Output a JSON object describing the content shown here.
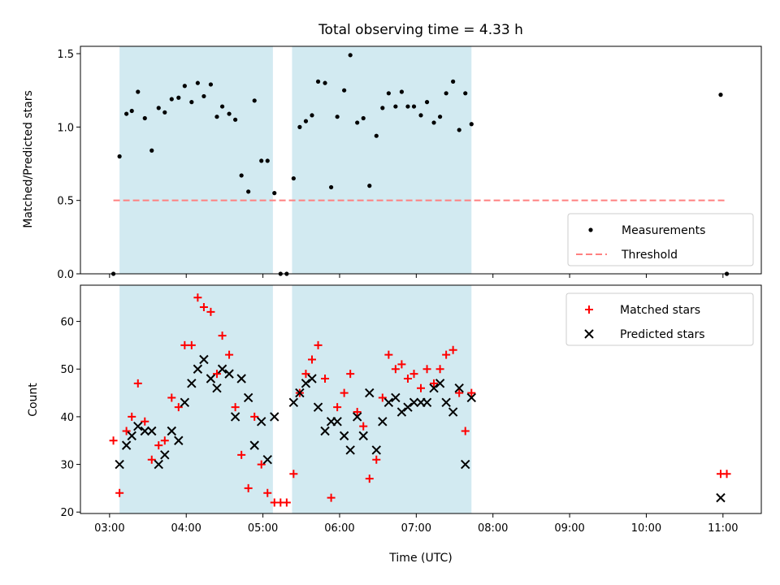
{
  "chart_data": [
    {
      "type": "scatter",
      "title": "Total observing time = 4.33 h",
      "ylabel": "Matched/Predicted stars",
      "xlabel": "",
      "xlim_hours": [
        2.62,
        11.5
      ],
      "ylim": [
        0,
        1.55
      ],
      "yticks": [
        0.0,
        0.5,
        1.0,
        1.5
      ],
      "ytick_labels": [
        "0.0",
        "0.5",
        "1.0",
        "1.5"
      ],
      "shaded_intervals_hours": [
        [
          3.13,
          5.13
        ],
        [
          5.38,
          7.72
        ]
      ],
      "shade_color": "#add8e6",
      "legend": {
        "placement": "lower right",
        "entries": [
          "Measurements",
          "Threshold"
        ]
      },
      "series": [
        {
          "name": "Measurements",
          "marker": "dot",
          "color": "#000000",
          "points": [
            [
              3.05,
              0.0
            ],
            [
              3.13,
              0.8
            ],
            [
              3.22,
              1.09
            ],
            [
              3.29,
              1.11
            ],
            [
              3.37,
              1.24
            ],
            [
              3.46,
              1.06
            ],
            [
              3.55,
              0.84
            ],
            [
              3.64,
              1.13
            ],
            [
              3.72,
              1.1
            ],
            [
              3.81,
              1.19
            ],
            [
              3.9,
              1.2
            ],
            [
              3.98,
              1.28
            ],
            [
              4.07,
              1.17
            ],
            [
              4.15,
              1.3
            ],
            [
              4.23,
              1.21
            ],
            [
              4.32,
              1.29
            ],
            [
              4.4,
              1.07
            ],
            [
              4.47,
              1.14
            ],
            [
              4.56,
              1.09
            ],
            [
              4.64,
              1.05
            ],
            [
              4.72,
              0.67
            ],
            [
              4.81,
              0.56
            ],
            [
              4.89,
              1.18
            ],
            [
              4.98,
              0.77
            ],
            [
              5.06,
              0.77
            ],
            [
              5.15,
              0.55
            ],
            [
              5.23,
              0.0
            ],
            [
              5.31,
              0.0
            ],
            [
              5.4,
              0.65
            ],
            [
              5.48,
              1.0
            ],
            [
              5.56,
              1.04
            ],
            [
              5.64,
              1.08
            ],
            [
              5.72,
              1.31
            ],
            [
              5.81,
              1.3
            ],
            [
              5.89,
              0.59
            ],
            [
              5.97,
              1.07
            ],
            [
              6.06,
              1.25
            ],
            [
              6.14,
              1.49
            ],
            [
              6.23,
              1.03
            ],
            [
              6.31,
              1.06
            ],
            [
              6.39,
              0.6
            ],
            [
              6.48,
              0.94
            ],
            [
              6.56,
              1.13
            ],
            [
              6.64,
              1.23
            ],
            [
              6.73,
              1.14
            ],
            [
              6.81,
              1.24
            ],
            [
              6.89,
              1.14
            ],
            [
              6.97,
              1.14
            ],
            [
              7.06,
              1.08
            ],
            [
              7.14,
              1.17
            ],
            [
              7.23,
              1.03
            ],
            [
              7.31,
              1.07
            ],
            [
              7.39,
              1.23
            ],
            [
              7.48,
              1.31
            ],
            [
              7.56,
              0.98
            ],
            [
              7.64,
              1.23
            ],
            [
              7.72,
              1.02
            ],
            [
              10.97,
              1.22
            ],
            [
              11.05,
              0.0
            ]
          ]
        },
        {
          "name": "Threshold",
          "style": "dashed",
          "color": "#ff8080",
          "x": [
            3.05,
            11.05
          ],
          "y": [
            0.5,
            0.5
          ]
        }
      ]
    },
    {
      "type": "scatter",
      "title": "",
      "xlabel": "Time (UTC)",
      "ylabel": "Count",
      "xlim_hours": [
        2.62,
        11.5
      ],
      "ylim": [
        19.7,
        67.6
      ],
      "yticks": [
        20,
        30,
        40,
        50,
        60
      ],
      "ytick_labels": [
        "20",
        "30",
        "40",
        "50",
        "60"
      ],
      "xticks_hours": [
        3,
        4,
        5,
        6,
        7,
        8,
        9,
        10,
        11
      ],
      "xtick_labels": [
        "03:00",
        "04:00",
        "05:00",
        "06:00",
        "07:00",
        "08:00",
        "09:00",
        "10:00",
        "11:00"
      ],
      "shaded_intervals_hours": [
        [
          3.13,
          5.13
        ],
        [
          5.38,
          7.72
        ]
      ],
      "shade_color": "#add8e6",
      "legend": {
        "placement": "upper right",
        "entries": [
          "Matched stars",
          "Predicted stars"
        ]
      },
      "series": [
        {
          "name": "Matched stars",
          "marker": "plus",
          "color": "#ff0000",
          "points": [
            [
              3.05,
              35
            ],
            [
              3.13,
              24
            ],
            [
              3.22,
              37
            ],
            [
              3.29,
              40
            ],
            [
              3.37,
              47
            ],
            [
              3.46,
              39
            ],
            [
              3.55,
              31
            ],
            [
              3.64,
              34
            ],
            [
              3.72,
              35
            ],
            [
              3.81,
              44
            ],
            [
              3.9,
              42
            ],
            [
              3.98,
              55
            ],
            [
              4.07,
              55
            ],
            [
              4.15,
              65
            ],
            [
              4.23,
              63
            ],
            [
              4.32,
              62
            ],
            [
              4.4,
              49
            ],
            [
              4.47,
              57
            ],
            [
              4.56,
              53
            ],
            [
              4.64,
              42
            ],
            [
              4.72,
              32
            ],
            [
              4.81,
              25
            ],
            [
              4.89,
              40
            ],
            [
              4.98,
              30
            ],
            [
              5.06,
              24
            ],
            [
              5.15,
              22
            ],
            [
              5.23,
              22
            ],
            [
              5.31,
              22
            ],
            [
              5.4,
              28
            ],
            [
              5.48,
              45
            ],
            [
              5.56,
              49
            ],
            [
              5.64,
              52
            ],
            [
              5.72,
              55
            ],
            [
              5.81,
              48
            ],
            [
              5.89,
              23
            ],
            [
              5.97,
              42
            ],
            [
              6.06,
              45
            ],
            [
              6.14,
              49
            ],
            [
              6.23,
              41
            ],
            [
              6.31,
              38
            ],
            [
              6.39,
              27
            ],
            [
              6.48,
              31
            ],
            [
              6.56,
              44
            ],
            [
              6.64,
              53
            ],
            [
              6.73,
              50
            ],
            [
              6.81,
              51
            ],
            [
              6.89,
              48
            ],
            [
              6.97,
              49
            ],
            [
              7.06,
              46
            ],
            [
              7.14,
              50
            ],
            [
              7.23,
              47
            ],
            [
              7.31,
              50
            ],
            [
              7.39,
              53
            ],
            [
              7.48,
              54
            ],
            [
              7.56,
              45
            ],
            [
              7.64,
              37
            ],
            [
              7.72,
              45
            ],
            [
              10.97,
              28
            ],
            [
              11.05,
              28
            ]
          ]
        },
        {
          "name": "Predicted stars",
          "marker": "x",
          "color": "#000000",
          "points": [
            [
              3.13,
              30
            ],
            [
              3.22,
              34
            ],
            [
              3.29,
              36
            ],
            [
              3.37,
              38
            ],
            [
              3.46,
              37
            ],
            [
              3.55,
              37
            ],
            [
              3.64,
              30
            ],
            [
              3.72,
              32
            ],
            [
              3.81,
              37
            ],
            [
              3.9,
              35
            ],
            [
              3.98,
              43
            ],
            [
              4.07,
              47
            ],
            [
              4.15,
              50
            ],
            [
              4.23,
              52
            ],
            [
              4.32,
              48
            ],
            [
              4.4,
              46
            ],
            [
              4.47,
              50
            ],
            [
              4.56,
              49
            ],
            [
              4.64,
              40
            ],
            [
              4.72,
              48
            ],
            [
              4.81,
              44
            ],
            [
              4.89,
              34
            ],
            [
              4.98,
              39
            ],
            [
              5.06,
              31
            ],
            [
              5.15,
              40
            ],
            [
              5.4,
              43
            ],
            [
              5.48,
              45
            ],
            [
              5.56,
              47
            ],
            [
              5.64,
              48
            ],
            [
              5.72,
              42
            ],
            [
              5.81,
              37
            ],
            [
              5.89,
              39
            ],
            [
              5.97,
              39
            ],
            [
              6.06,
              36
            ],
            [
              6.14,
              33
            ],
            [
              6.23,
              40
            ],
            [
              6.31,
              36
            ],
            [
              6.39,
              45
            ],
            [
              6.48,
              33
            ],
            [
              6.56,
              39
            ],
            [
              6.64,
              43
            ],
            [
              6.73,
              44
            ],
            [
              6.81,
              41
            ],
            [
              6.89,
              42
            ],
            [
              6.97,
              43
            ],
            [
              7.06,
              43
            ],
            [
              7.14,
              43
            ],
            [
              7.23,
              46
            ],
            [
              7.31,
              47
            ],
            [
              7.39,
              43
            ],
            [
              7.48,
              41
            ],
            [
              7.56,
              46
            ],
            [
              7.64,
              30
            ],
            [
              7.72,
              44
            ],
            [
              10.97,
              23
            ]
          ]
        }
      ]
    }
  ]
}
